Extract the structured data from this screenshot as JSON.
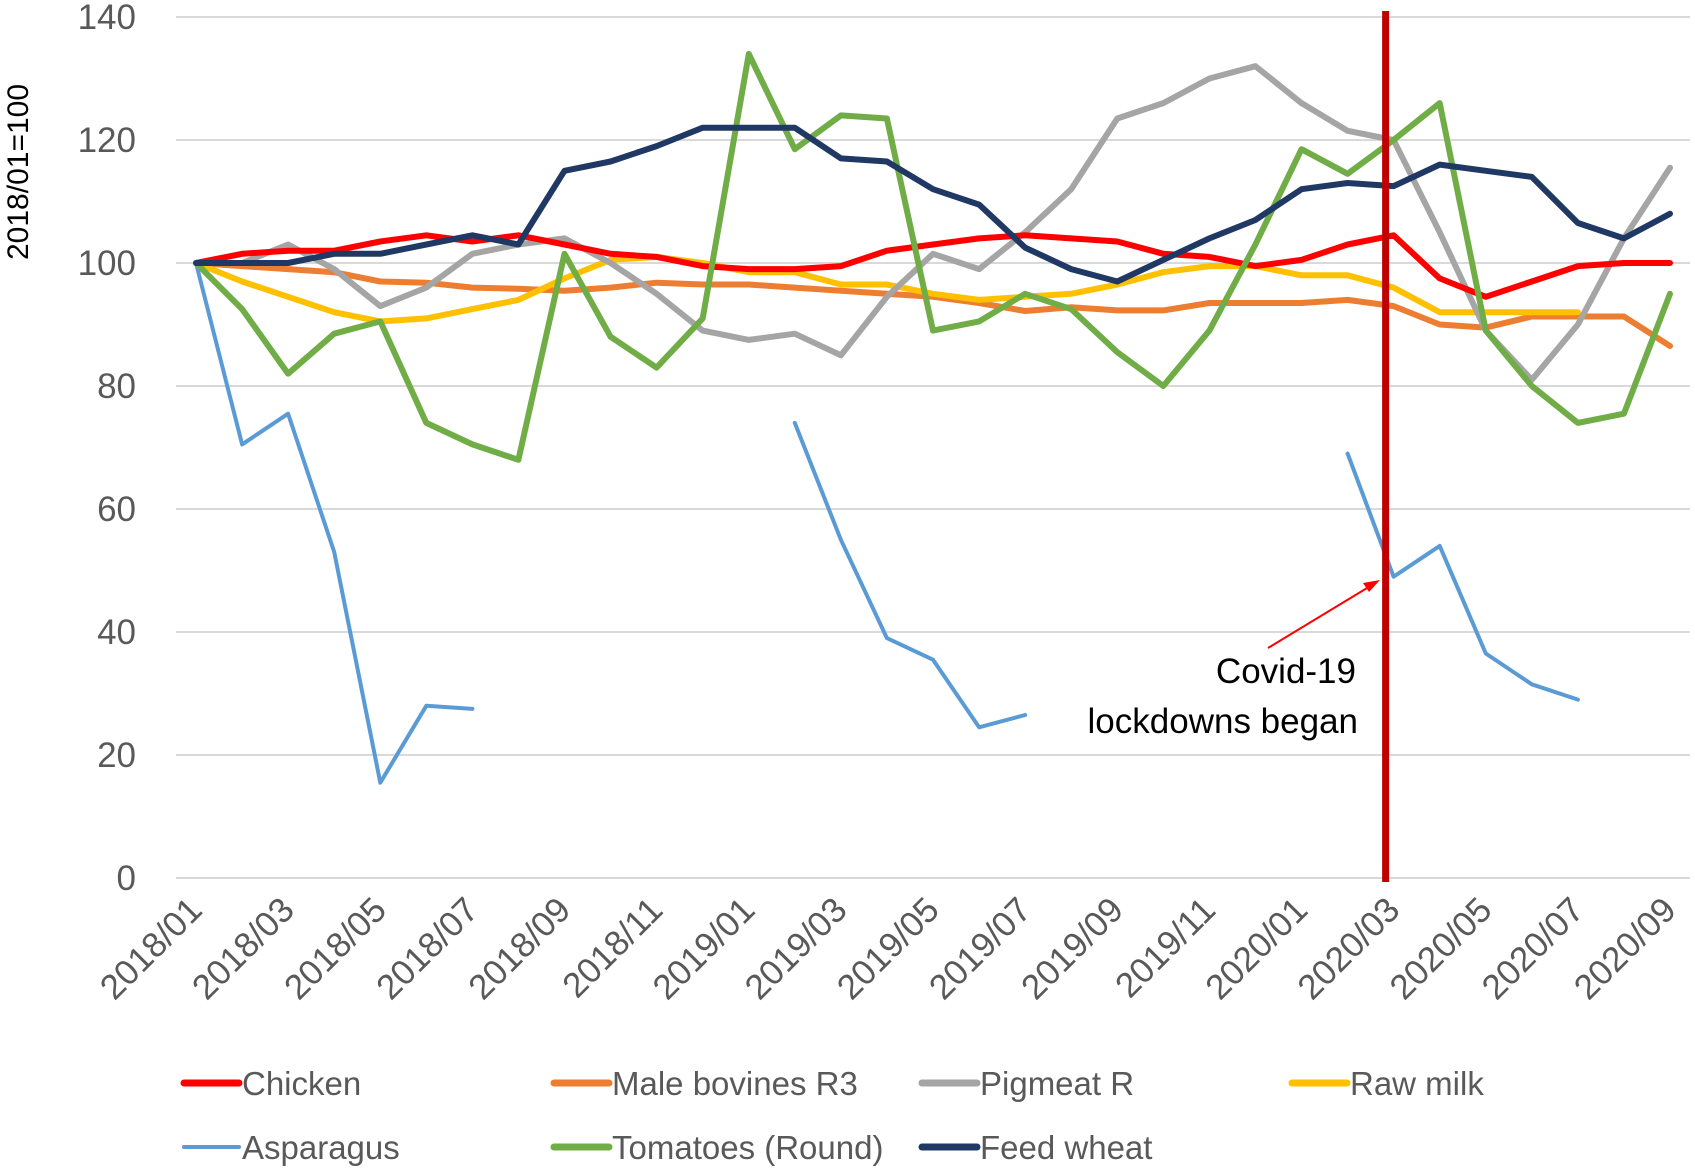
{
  "chart_data": {
    "type": "line",
    "title": "",
    "xlabel": "",
    "ylabel": "2018/01=100",
    "ylim": [
      0,
      140
    ],
    "yticks": [
      0,
      20,
      40,
      60,
      80,
      100,
      120,
      140
    ],
    "grid": true,
    "legend_position": "bottom",
    "x": [
      "2018/01",
      "2018/02",
      "2018/03",
      "2018/04",
      "2018/05",
      "2018/06",
      "2018/07",
      "2018/08",
      "2018/09",
      "2018/10",
      "2018/11",
      "2018/12",
      "2019/01",
      "2019/02",
      "2019/03",
      "2019/04",
      "2019/05",
      "2019/06",
      "2019/07",
      "2019/08",
      "2019/09",
      "2019/10",
      "2019/11",
      "2019/12",
      "2020/01",
      "2020/02",
      "2020/03",
      "2020/04",
      "2020/05",
      "2020/06",
      "2020/07",
      "2020/08",
      "2020/09"
    ],
    "xtick_labels": [
      "2018/01",
      "2018/03",
      "2018/05",
      "2018/07",
      "2018/09",
      "2018/11",
      "2019/01",
      "2019/03",
      "2019/05",
      "2019/07",
      "2019/09",
      "2019/11",
      "2020/01",
      "2020/03",
      "2020/05",
      "2020/07",
      "2020/09"
    ],
    "series": [
      {
        "name": "Chicken",
        "color": "#ff0000",
        "values": [
          100,
          101.5,
          102,
          102,
          103.5,
          104.5,
          103.5,
          104.5,
          103,
          101.5,
          101,
          99.5,
          99,
          99,
          99.5,
          102,
          103,
          104,
          104.5,
          104,
          103.5,
          101.5,
          101,
          99.5,
          100.5,
          103,
          104.5,
          97.5,
          94.5,
          97,
          99.5,
          100,
          100
        ]
      },
      {
        "name": "Male bovines R3",
        "color": "#ed7d31",
        "values": [
          100,
          99.5,
          99,
          98.5,
          97,
          96.8,
          96,
          95.8,
          95.5,
          96,
          96.8,
          96.5,
          96.5,
          96,
          95.5,
          95,
          94.5,
          93.5,
          92.2,
          92.8,
          92.3,
          92.3,
          93.5,
          93.5,
          93.5,
          94,
          93,
          90,
          89.5,
          91.3,
          91.3,
          91.3,
          86.5
        ]
      },
      {
        "name": "Pigmeat R",
        "color": "#a5a5a5",
        "values": [
          100,
          100,
          103,
          99,
          93,
          96,
          101.5,
          103,
          104,
          100,
          95,
          89,
          87.5,
          88.5,
          85,
          94.5,
          101.5,
          99,
          105,
          112,
          123.5,
          126,
          130,
          132,
          126,
          121.5,
          120,
          105,
          89,
          81,
          90,
          104,
          115.5
        ]
      },
      {
        "name": "Raw milk",
        "color": "#ffc000",
        "values": [
          100,
          97,
          94.5,
          92,
          90.5,
          91,
          92.5,
          94,
          97.5,
          100.5,
          101,
          100,
          98.5,
          98.5,
          96.5,
          96.5,
          95,
          94,
          94.5,
          95,
          96.5,
          98.5,
          99.5,
          99.5,
          98,
          98,
          96,
          92,
          92,
          92,
          92,
          null,
          null
        ]
      },
      {
        "name": "Asparagus",
        "color": "#5b9bd5",
        "values": [
          100,
          70.5,
          75.5,
          53,
          15.5,
          28,
          27.5,
          null,
          null,
          null,
          null,
          null,
          null,
          74,
          55,
          39,
          35.5,
          24.5,
          26.5,
          null,
          null,
          null,
          null,
          null,
          null,
          69,
          49,
          54,
          36.5,
          31.5,
          29,
          null,
          null
        ]
      },
      {
        "name": "Tomatoes (Round)",
        "color": "#70ad47",
        "values": [
          100,
          92.5,
          82,
          88.5,
          90.5,
          74,
          70.5,
          68,
          101.5,
          88,
          83,
          91,
          134,
          118.5,
          124,
          123.5,
          89,
          90.5,
          95,
          92.5,
          85.5,
          80,
          89,
          103,
          118.5,
          114.5,
          120,
          126,
          89,
          80,
          74,
          75.5,
          95
        ]
      },
      {
        "name": "Feed wheat",
        "color": "#203864",
        "values": [
          100,
          100,
          100,
          101.5,
          101.5,
          103,
          104.5,
          103,
          115,
          116.5,
          119,
          122,
          122,
          122,
          117,
          116.5,
          112,
          109.5,
          102.5,
          99,
          97,
          100.5,
          104,
          107,
          112,
          113,
          112.5,
          116,
          115,
          114,
          106.5,
          104,
          108
        ]
      }
    ],
    "annotations": [
      {
        "type": "vertical_line",
        "x": "2020/03",
        "color": "#c00000",
        "label": "Covid-19 lockdowns began"
      }
    ]
  },
  "annotation": {
    "line1": "Covid-19",
    "line2": "lockdowns began"
  }
}
